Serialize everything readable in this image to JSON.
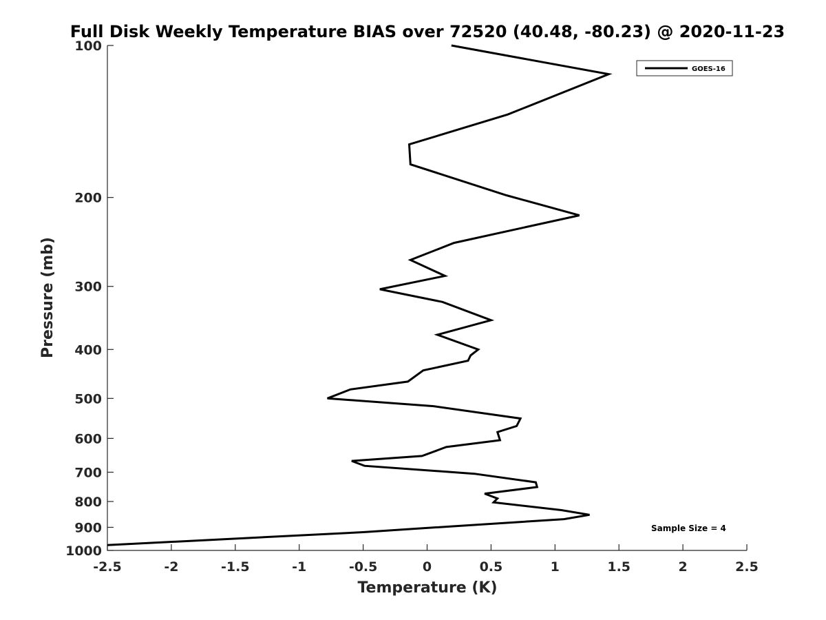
{
  "chart_data": {
    "type": "line",
    "title": "Full Disk Weekly Temperature BIAS over 72520 (40.48, -80.23) @ 2020-11-23",
    "xlabel": "Temperature (K)",
    "ylabel": "Pressure (mb)",
    "xlim": [
      -2.5,
      2.5
    ],
    "ylim": [
      100,
      1000
    ],
    "y_scale": "log",
    "y_reversed": true,
    "x_ticks": [
      "-2.5",
      "-2",
      "-1.5",
      "-1",
      "-0.5",
      "0",
      "0.5",
      "1",
      "1.5",
      "2",
      "2.5"
    ],
    "y_ticks": [
      "100",
      "200",
      "300",
      "400",
      "500",
      "600",
      "700",
      "800",
      "900",
      "1000"
    ],
    "grid": false,
    "legend_position": "top-right",
    "annotation": "Sample Size = 4",
    "series": [
      {
        "name": "GOES-16",
        "color": "#000000",
        "x": [
          0.19,
          1.42,
          0.63,
          -0.14,
          -0.13,
          0.62,
          1.19,
          0.21,
          -0.13,
          0.14,
          -0.37,
          0.12,
          0.5,
          0.08,
          0.4,
          0.34,
          0.32,
          -0.03,
          -0.15,
          -0.6,
          -0.78,
          0.05,
          0.73,
          0.7,
          0.55,
          0.57,
          0.15,
          -0.04,
          -0.59,
          -0.49,
          0.37,
          0.85,
          0.86,
          0.45,
          0.55,
          0.52,
          1.05,
          1.27,
          1.07,
          0.05,
          -0.5,
          -2.5
        ],
        "y": [
          100,
          114,
          137,
          157,
          172,
          198,
          217,
          246,
          266,
          286,
          304,
          322,
          350,
          374,
          400,
          411,
          421,
          440,
          463,
          480,
          500,
          518,
          548,
          567,
          583,
          605,
          624,
          650,
          665,
          680,
          705,
          733,
          749,
          772,
          789,
          803,
          832,
          850,
          867,
          901,
          920,
          976
        ]
      }
    ]
  }
}
